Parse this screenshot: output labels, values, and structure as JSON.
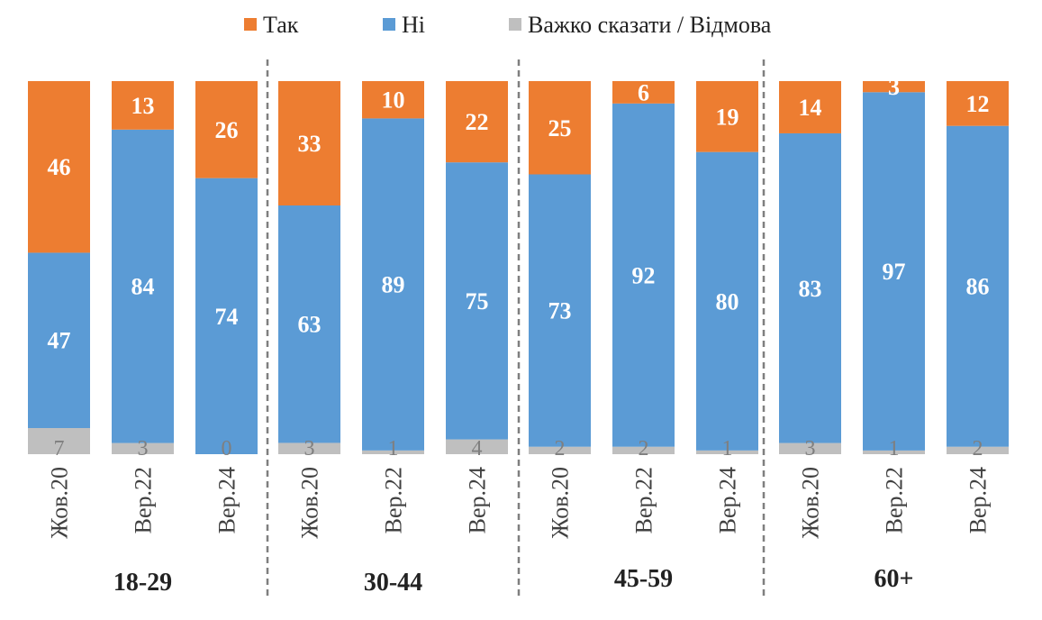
{
  "colors": {
    "yes": "#ED7D31",
    "no": "#5B9BD5",
    "dk": "#BFBFBF"
  },
  "legend": [
    {
      "key": "yes",
      "label": "Так",
      "color": "#ED7D31"
    },
    {
      "key": "no",
      "label": "Ні",
      "color": "#5B9BD5"
    },
    {
      "key": "dk",
      "label": "Важко сказати / Відмова",
      "color": "#BFBFBF"
    }
  ],
  "chart_data": {
    "type": "bar",
    "stacked": true,
    "orientation": "vertical",
    "legend_position": "top",
    "grid": false,
    "ylim": [
      0,
      100
    ],
    "series": [
      {
        "name": "Важко сказати / Відмова",
        "key": "dk"
      },
      {
        "name": "Ні",
        "key": "no"
      },
      {
        "name": "Так",
        "key": "yes"
      }
    ],
    "groups": [
      {
        "label": "18-29",
        "bars": [
          {
            "category": "Жов.20",
            "yes": 46,
            "no": 47,
            "dk": 7
          },
          {
            "category": "Вер.22",
            "yes": 13,
            "no": 84,
            "dk": 3
          },
          {
            "category": "Вер.24",
            "yes": 26,
            "no": 74,
            "dk": 0
          }
        ]
      },
      {
        "label": "30-44",
        "bars": [
          {
            "category": "Жов.20",
            "yes": 33,
            "no": 63,
            "dk": 3
          },
          {
            "category": "Вер.22",
            "yes": 10,
            "no": 89,
            "dk": 1
          },
          {
            "category": "Вер.24",
            "yes": 22,
            "no": 75,
            "dk": 4
          }
        ]
      },
      {
        "label": "45-59",
        "bars": [
          {
            "category": "Жов.20",
            "yes": 25,
            "no": 73,
            "dk": 2
          },
          {
            "category": "Вер.22",
            "yes": 6,
            "no": 92,
            "dk": 2
          },
          {
            "category": "Вер.24",
            "yes": 19,
            "no": 80,
            "dk": 1
          }
        ]
      },
      {
        "label": "60+",
        "bars": [
          {
            "category": "Жов.20",
            "yes": 14,
            "no": 83,
            "dk": 3
          },
          {
            "category": "Вер.22",
            "yes": 3,
            "no": 97,
            "dk": 1
          },
          {
            "category": "Вер.24",
            "yes": 12,
            "no": 86,
            "dk": 2
          }
        ]
      }
    ]
  }
}
